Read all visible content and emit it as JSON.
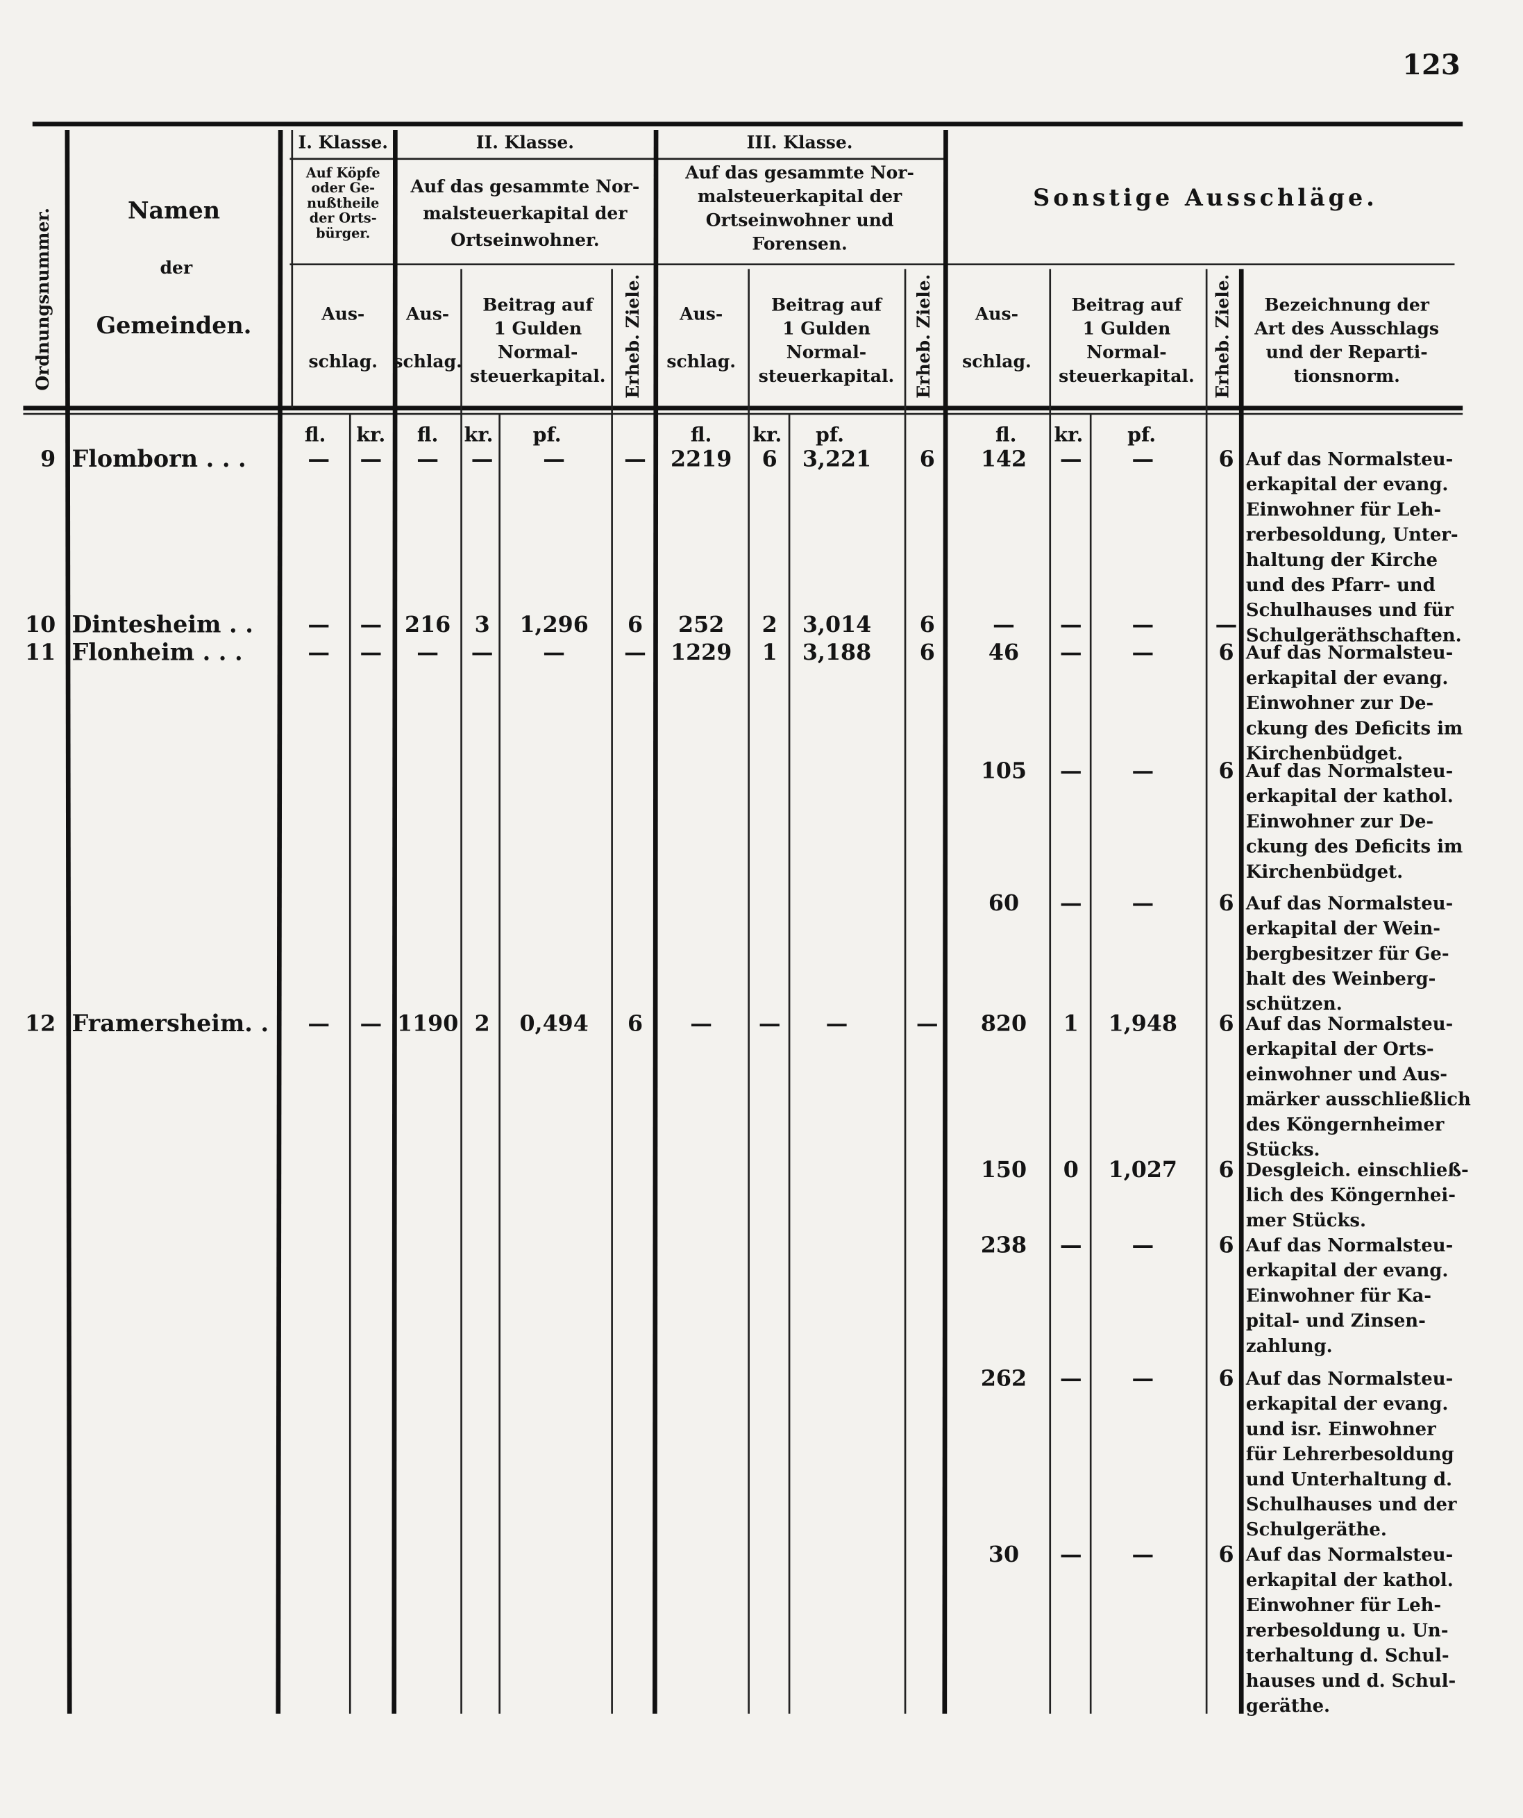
{
  "header": {
    "page_number": "123",
    "order_number": "Ordnungsnummer.",
    "names": [
      "Namen",
      "der",
      "Gemeinden."
    ],
    "class_1": {
      "label": "I. Klasse.",
      "description": [
        "Auf Köpfe",
        "oder Ge-",
        "nußtheile",
        "der Orts-",
        "bürger."
      ],
      "ausschlag": [
        "Aus-",
        "schlag."
      ]
    },
    "class_2": {
      "label": "II. Klasse.",
      "description": [
        "Auf das gesammte Nor-",
        "malsteuerkapital der",
        "Ortseinwohner."
      ],
      "ausschlag": [
        "Aus-",
        "schlag."
      ],
      "beitrag": [
        "Beitrag auf",
        "1 Gulden",
        "Normal-",
        "steuerkapital."
      ],
      "ziele": "Erheb. Ziele."
    },
    "class_3": {
      "label": "III. Klasse.",
      "description": [
        "Auf das gesammte Nor-",
        "malsteuerkapital der",
        "Ortseinwohner und",
        "Forensen."
      ],
      "ausschlag": [
        "Aus-",
        "schlag."
      ],
      "beitrag": [
        "Beitrag auf",
        "1 Gulden",
        "Normal-",
        "steuerkapital."
      ],
      "ziele": "Erheb. Ziele."
    },
    "sonstige": {
      "title": "Sonstige Ausschläge.",
      "ausschlag": [
        "Aus-",
        "schlag."
      ],
      "beitrag": [
        "Beitrag auf",
        "1 Gulden",
        "Normal-",
        "steuerkapital."
      ],
      "ziele": "Erheb. Ziele.",
      "description_header": [
        "Bezeichnung der",
        "Art des Ausschlags",
        "und der Reparti-",
        "tionsnorm."
      ]
    },
    "units": {
      "class_1": [
        "fl.",
        "kr."
      ],
      "class_2": [
        "fl.",
        "kr.",
        "pf."
      ],
      "class_3": [
        "fl.",
        "kr.",
        "pf."
      ],
      "sonstige": [
        "fl.",
        "kr.",
        "pf."
      ]
    }
  },
  "rows": [
    {
      "number": "9",
      "name": "Flomborn . . .",
      "class_1": {
        "fl": "—",
        "kr": "—"
      },
      "class_2": {
        "fl": "—",
        "kr": "—",
        "pf": "—",
        "ziele": "—"
      },
      "class_3": {
        "fl": "2219",
        "kr": "6",
        "pf": "3,221",
        "ziele": "6"
      },
      "sonstige": [
        {
          "fl": "142",
          "kr": "—",
          "pf": "—",
          "ziele": "6",
          "description": [
            "Auf das Normalsteu-",
            "erkapital der evang.",
            "Einwohner für Leh-",
            "rerbesoldung, Unter-",
            "haltung der Kirche",
            "und des Pfarr- und",
            "Schulhauses und für",
            "Schulgeräthschaften."
          ]
        }
      ]
    },
    {
      "number": "10",
      "name": "Dintesheim . .",
      "class_1": {
        "fl": "—",
        "kr": "—"
      },
      "class_2": {
        "fl": "216",
        "kr": "3",
        "pf": "1,296",
        "ziele": "6"
      },
      "class_3": {
        "fl": "252",
        "kr": "2",
        "pf": "3,014",
        "ziele": "6"
      },
      "sonstige": [
        {
          "fl": "—",
          "kr": "—",
          "pf": "—",
          "ziele": "—"
        }
      ]
    },
    {
      "number": "11",
      "name": "Flonheim . . .",
      "class_1": {
        "fl": "—",
        "kr": "—"
      },
      "class_2": {
        "fl": "—",
        "kr": "—",
        "pf": "—",
        "ziele": "—"
      },
      "class_3": {
        "fl": "1229",
        "kr": "1",
        "pf": "3,188",
        "ziele": "6"
      },
      "sonstige": [
        {
          "fl": "46",
          "kr": "—",
          "pf": "—",
          "ziele": "6",
          "description": [
            "Auf das Normalsteu-",
            "erkapital der evang.",
            "Einwohner zur De-",
            "ckung des Deficits im",
            "Kirchenbüdget."
          ]
        },
        {
          "fl": "105",
          "kr": "—",
          "pf": "—",
          "ziele": "6",
          "description": [
            "Auf das Normalsteu-",
            "erkapital der kathol.",
            "Einwohner zur De-",
            "ckung des Deficits im",
            "Kirchenbüdget."
          ]
        },
        {
          "fl": "60",
          "kr": "—",
          "pf": "—",
          "ziele": "6",
          "description": [
            "Auf das Normalsteu-",
            "erkapital der Wein-",
            "bergbesitzer für Ge-",
            "halt des Weinberg-",
            "schützen."
          ]
        }
      ]
    },
    {
      "number": "12",
      "name": "Framersheim. .",
      "class_1": {
        "fl": "—",
        "kr": "—"
      },
      "class_2": {
        "fl": "1190",
        "kr": "2",
        "pf": "0,494",
        "ziele": "6"
      },
      "class_3": {
        "fl": "—",
        "kr": "—",
        "pf": "—",
        "ziele": "—"
      },
      "sonstige": [
        {
          "fl": "820",
          "kr": "1",
          "pf": "1,948",
          "ziele": "6",
          "description": [
            "Auf das Normalsteu-",
            "erkapital der Orts-",
            "einwohner und Aus-",
            "märker ausschließlich",
            "des Köngernheimer",
            "Stücks."
          ]
        },
        {
          "fl": "150",
          "kr": "0",
          "pf": "1,027",
          "ziele": "6",
          "description": [
            "Desgleich. einschließ-",
            "lich des Köngernhei-",
            "mer Stücks."
          ]
        },
        {
          "fl": "238",
          "kr": "—",
          "pf": "—",
          "ziele": "6",
          "description": [
            "Auf das Normalsteu-",
            "erkapital der evang.",
            "Einwohner für Ka-",
            "pital- und Zinsen-",
            "zahlung."
          ]
        },
        {
          "fl": "262",
          "kr": "—",
          "pf": "—",
          "ziele": "6",
          "description": [
            "Auf das Normalsteu-",
            "erkapital der evang.",
            "und isr. Einwohner",
            "für Lehrerbesoldung",
            "und Unterhaltung d.",
            "Schulhauses und der",
            "Schulgeräthe."
          ]
        },
        {
          "fl": "30",
          "kr": "—",
          "pf": "—",
          "ziele": "6",
          "description": [
            "Auf das Normalsteu-",
            "erkapital der kathol.",
            "Einwohner für Leh-",
            "rerbesoldung u. Un-",
            "terhaltung d. Schul-",
            "hauses und d. Schul-",
            "geräthe."
          ]
        }
      ]
    }
  ]
}
